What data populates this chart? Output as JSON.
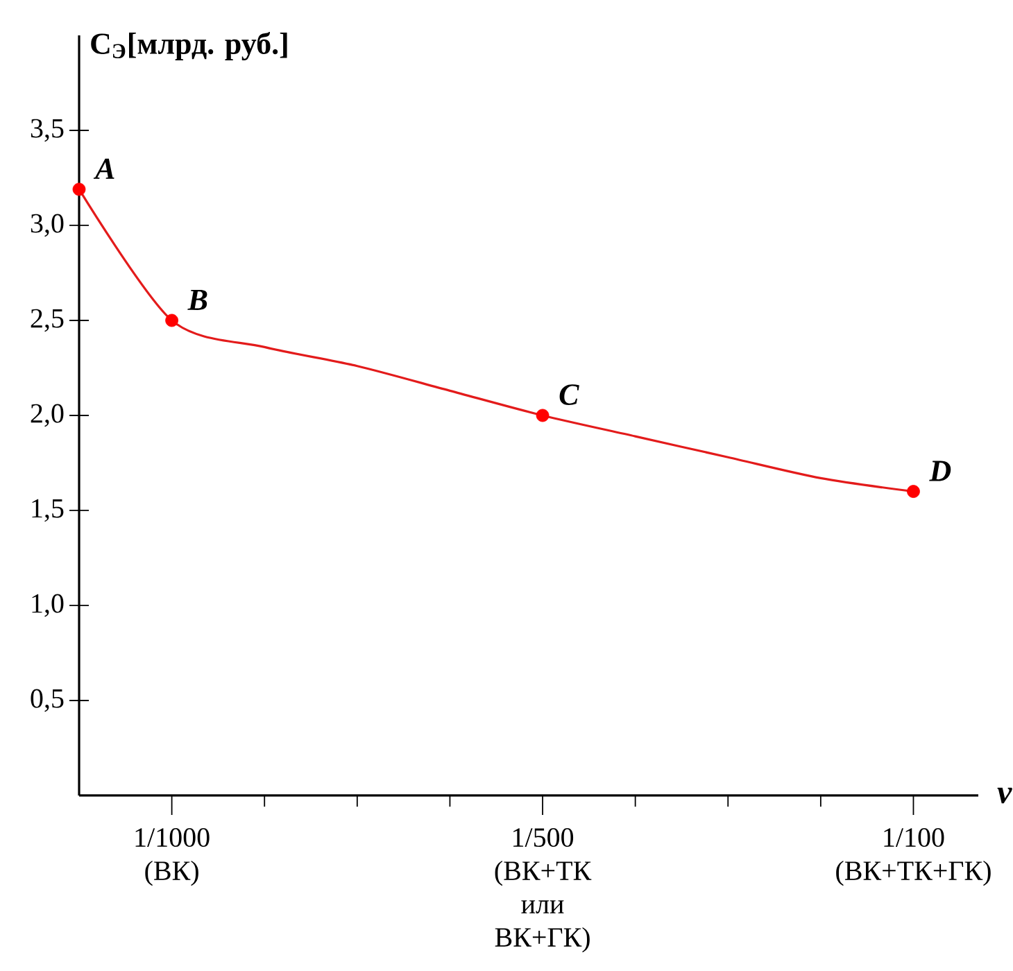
{
  "chart_data": {
    "type": "line",
    "ylabel": "**C$_{Э}$[млрд. руб.]**",
    "xlabel": "v",
    "ylim": [
      0,
      4.0
    ],
    "categories": [
      null,
      "1/1000\n(ВК)",
      null,
      null,
      null,
      "1/500\n(ВК+ТК\nили\nВК+ГК)",
      null,
      null,
      null,
      "1/100\n(ВК+ТК+ГК)"
    ],
    "yticks": [
      {
        "value": 0.5,
        "label": "0,5"
      },
      {
        "value": 1.0,
        "label": "1,0"
      },
      {
        "value": 1.5,
        "label": "1,5"
      },
      {
        "value": 2.0,
        "label": "2,0"
      },
      {
        "value": 2.5,
        "label": "2,5"
      },
      {
        "value": 3.0,
        "label": "3,0"
      },
      {
        "value": 3.5,
        "label": "3,5"
      }
    ],
    "series": [
      {
        "color": "#e31b1b",
        "marker": "none",
        "values": [
          3.19,
          2.5,
          2.36,
          2.26,
          2.13,
          2.0,
          1.89,
          1.78,
          1.67,
          1.6
        ]
      },
      {
        "type": "scatter",
        "color": "#ff0000",
        "marker": "circle",
        "values": [
          3.19,
          2.5,
          null,
          null,
          null,
          2.0,
          null,
          null,
          null,
          1.6
        ]
      }
    ],
    "annotations": [
      "A",
      "B",
      "C",
      "D"
    ]
  }
}
